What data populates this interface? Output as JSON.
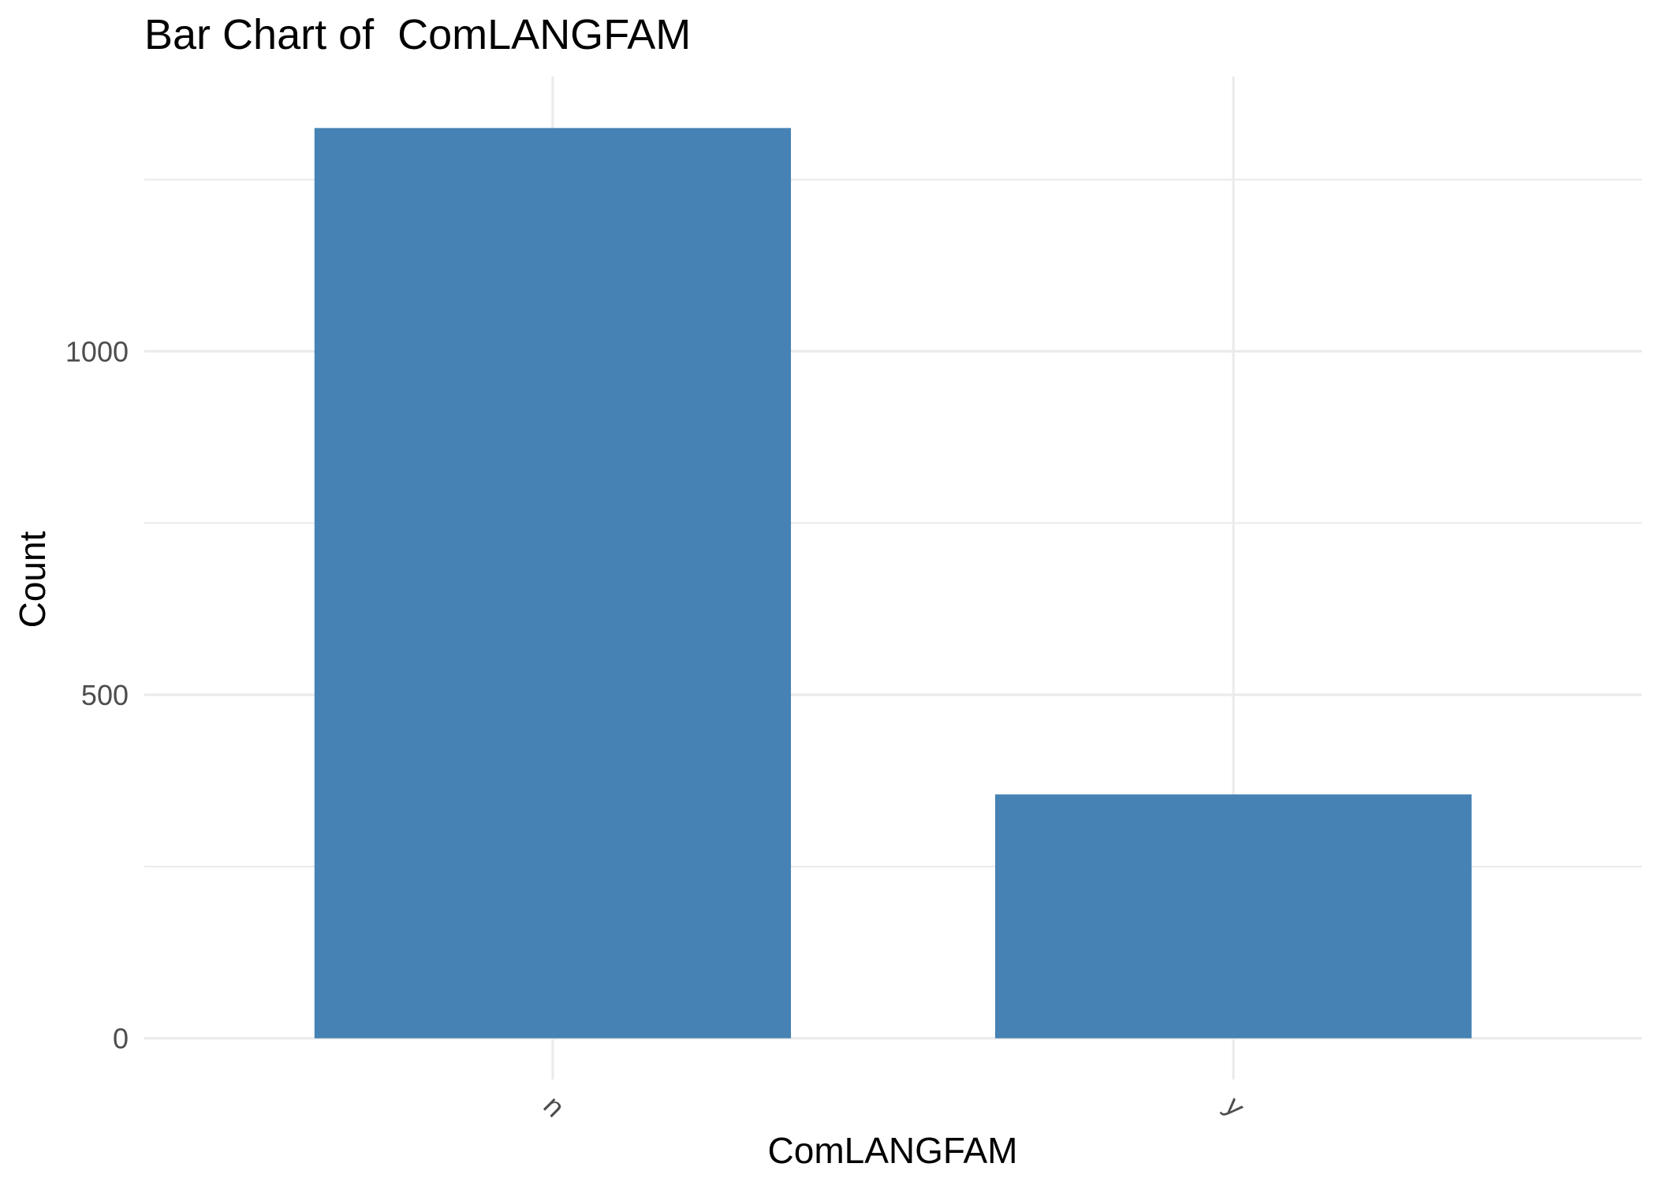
{
  "chart_data": {
    "type": "bar",
    "title": "Bar Chart of  ComLANGFAM",
    "xlabel": "ComLANGFAM",
    "ylabel": "Count",
    "categories": [
      "n",
      "y"
    ],
    "values": [
      1325,
      355
    ],
    "ylim": [
      -60,
      1400
    ],
    "yticks": [
      0,
      500,
      1000
    ],
    "y_minor_ticks": [
      250,
      750,
      1250
    ],
    "x_tick_rotation_deg": 45,
    "grid": true,
    "legend": "none",
    "bar_color": "#4682B4",
    "grid_color": "#EBEBEB",
    "tick_label_color": "#4D4D4D",
    "text_color": "#000000"
  }
}
